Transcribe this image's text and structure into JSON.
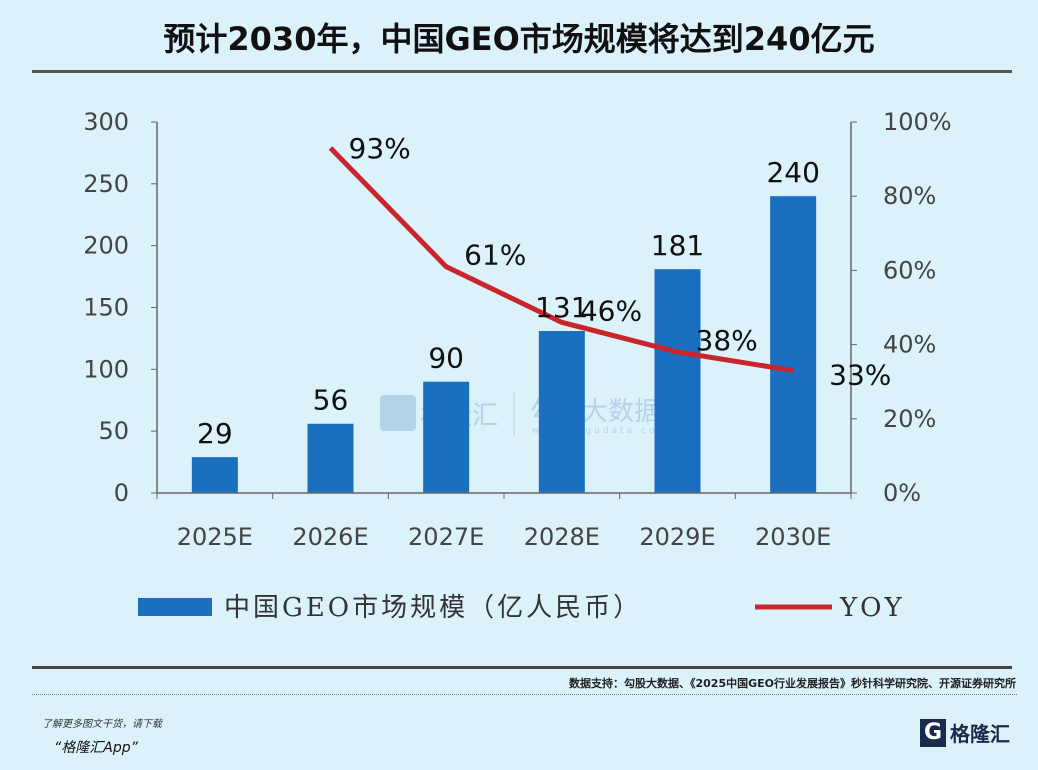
{
  "title": "预计2030年，中国GEO市场规模将达到240亿元",
  "source": "数据支持：勾股大数据、《2025中国GEO行业发展报告》秒针科学研究院、开源证券研究所",
  "promo": {
    "line1": "了解更多图文干货，请下载",
    "line2": "“格隆汇App”"
  },
  "logo": {
    "mark": "G",
    "text": "格隆汇"
  },
  "watermark": {
    "left": "格隆汇",
    "right": "勾股大数据",
    "right_url": "www.gogudata.com"
  },
  "colors": {
    "bar": "#1a6fc0",
    "line": "#c8262c",
    "background": "#dcf2fb"
  },
  "chart_data": {
    "type": "bar+line",
    "categories": [
      "2025E",
      "2026E",
      "2027E",
      "2028E",
      "2029E",
      "2030E"
    ],
    "series": [
      {
        "name": "中国GEO市场规模（亿人民币）",
        "type": "bar",
        "axis": "left",
        "values": [
          29,
          56,
          90,
          131,
          181,
          240
        ],
        "labels": [
          "29",
          "56",
          "90",
          "131",
          "181",
          "240"
        ]
      },
      {
        "name": "YOY",
        "type": "line",
        "axis": "right",
        "values": [
          null,
          93,
          61,
          46,
          38,
          33
        ],
        "labels": [
          "",
          "93%",
          "61%",
          "46%",
          "38%",
          "33%"
        ]
      }
    ],
    "y_left": {
      "range": [
        0,
        300
      ],
      "ticks": [
        "0",
        "50",
        "100",
        "150",
        "200",
        "250",
        "300"
      ]
    },
    "y_right": {
      "range": [
        0,
        100
      ],
      "ticks": [
        "0%",
        "20%",
        "40%",
        "60%",
        "80%",
        "100%"
      ]
    },
    "grid": false,
    "legend": "bottom"
  }
}
